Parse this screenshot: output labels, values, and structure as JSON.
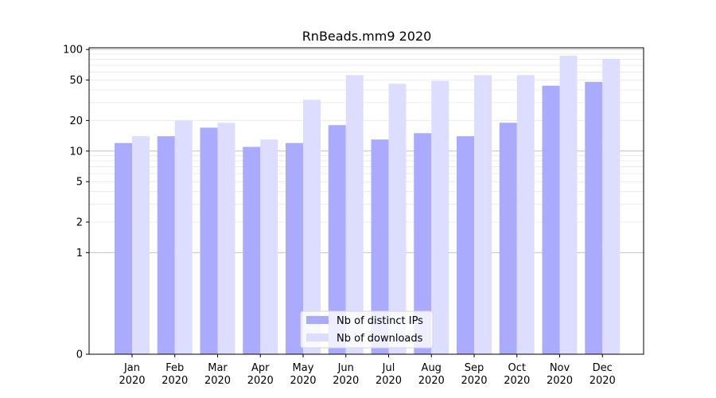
{
  "chart_data": {
    "type": "bar",
    "title": "RnBeads.mm9 2020",
    "xlabel": "",
    "ylabel": "",
    "yscale": "symlog",
    "ylim": [
      0,
      104
    ],
    "y_ticks": [
      0,
      1,
      2,
      5,
      10,
      20,
      50,
      100
    ],
    "grid": "horizontal",
    "legend_position": "bottom-center",
    "categories": [
      [
        "Jan",
        "2020"
      ],
      [
        "Feb",
        "2020"
      ],
      [
        "Mar",
        "2020"
      ],
      [
        "Apr",
        "2020"
      ],
      [
        "May",
        "2020"
      ],
      [
        "Jun",
        "2020"
      ],
      [
        "Jul",
        "2020"
      ],
      [
        "Aug",
        "2020"
      ],
      [
        "Sep",
        "2020"
      ],
      [
        "Oct",
        "2020"
      ],
      [
        "Nov",
        "2020"
      ],
      [
        "Dec",
        "2020"
      ]
    ],
    "series": [
      {
        "name": "Nb of distinct IPs",
        "color": "#aaaaff",
        "values": [
          12,
          14,
          17,
          11,
          12,
          18,
          13,
          15,
          14,
          19,
          44,
          48
        ]
      },
      {
        "name": "Nb of downloads",
        "color": "#ddddff",
        "values": [
          14,
          20,
          19,
          13,
          32,
          56,
          46,
          49,
          56,
          56,
          87,
          81
        ]
      }
    ]
  }
}
